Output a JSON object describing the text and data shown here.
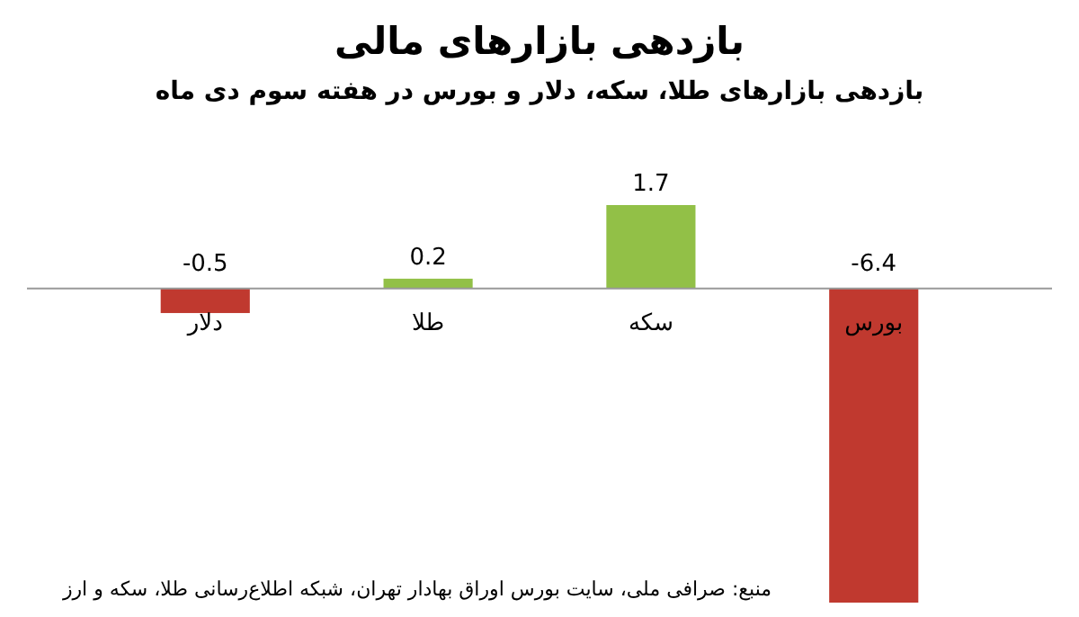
{
  "chart_data": {
    "type": "bar",
    "title": "بازدهی بازارهای مالی",
    "subtitle": "بازدهی بازارهای طلا، سکه، دلار و بورس در هفته سوم دی ماه",
    "categories": [
      "دلار",
      "طلا",
      "سکه",
      "بورس"
    ],
    "values": [
      -0.5,
      0.2,
      1.7,
      -6.4
    ],
    "colors": [
      "#c0392f",
      "#92c047",
      "#92c047",
      "#c0392f"
    ],
    "data_labels": true,
    "annotations": [
      "منبع: صرافی ملی، سایت بورس اوراق بهادار تهران، شبکه اطلاع‌رسانی طلا، سکه و ارز"
    ]
  }
}
